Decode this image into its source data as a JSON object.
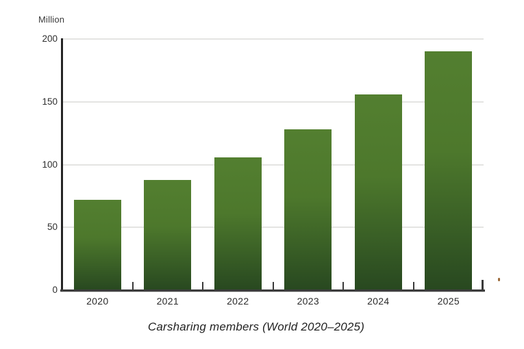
{
  "chart_data": {
    "type": "bar",
    "title": "Carsharing members (World 2020–2025)",
    "unit_label": "Million",
    "categories": [
      "2020",
      "2021",
      "2022",
      "2023",
      "2024",
      "2025"
    ],
    "values": [
      72,
      88,
      106,
      128,
      156,
      190
    ],
    "xlabel": "",
    "ylabel": "Million",
    "ylim": [
      0,
      200
    ],
    "yticks": [
      0,
      50,
      100,
      150,
      200
    ],
    "grid": true,
    "legend": "none",
    "colors": {
      "bar_top": "#537f30",
      "bar_bottom": "#284820",
      "gridline": "#e4e4e2",
      "axis": "#242424",
      "text": "#2b2b2b"
    }
  }
}
